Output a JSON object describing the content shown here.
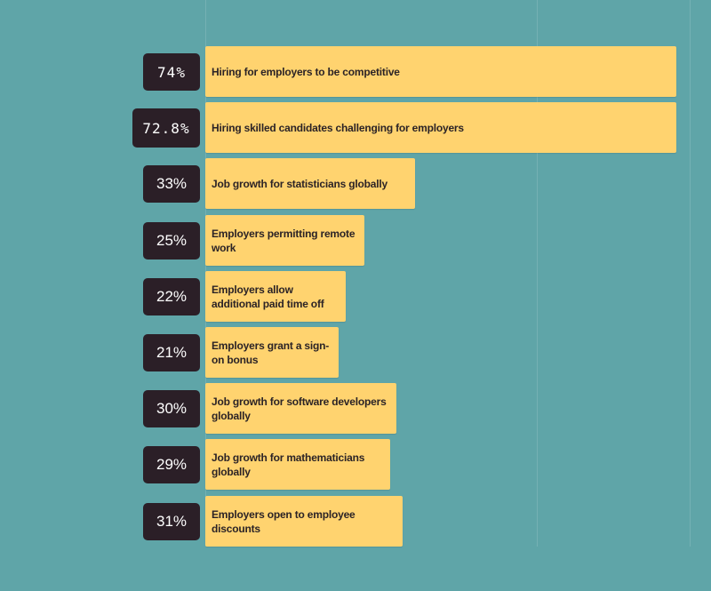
{
  "chart_data": {
    "type": "bar",
    "orientation": "horizontal",
    "categories": [
      "Hiring for employers to be competitive",
      "Hiring skilled candidates challenging for employers",
      "Job growth for statisticians globally",
      "Employers permitting remote work",
      "Employers allow additional paid time off",
      "Employers grant a sign-on bonus",
      "Job growth for software developers globally",
      "Job growth for mathematicians globally",
      "Employers open to employee discounts"
    ],
    "values": [
      74,
      72.8,
      33,
      25,
      22,
      21,
      30,
      29,
      31
    ],
    "value_labels": [
      "74%",
      "72.8%",
      "33%",
      "25%",
      "22%",
      "21%",
      "30%",
      "29%",
      "31%"
    ],
    "unit": "%",
    "title": "",
    "xlabel": "",
    "ylabel": "",
    "xlim": [
      0,
      74
    ],
    "grid": true,
    "legend": "none"
  },
  "colors": {
    "background": "#5fa5a8",
    "bar": "#ffd36f",
    "value_box": "#2b1f27",
    "value_text": "#ffffff",
    "label_text": "#2b2326"
  }
}
